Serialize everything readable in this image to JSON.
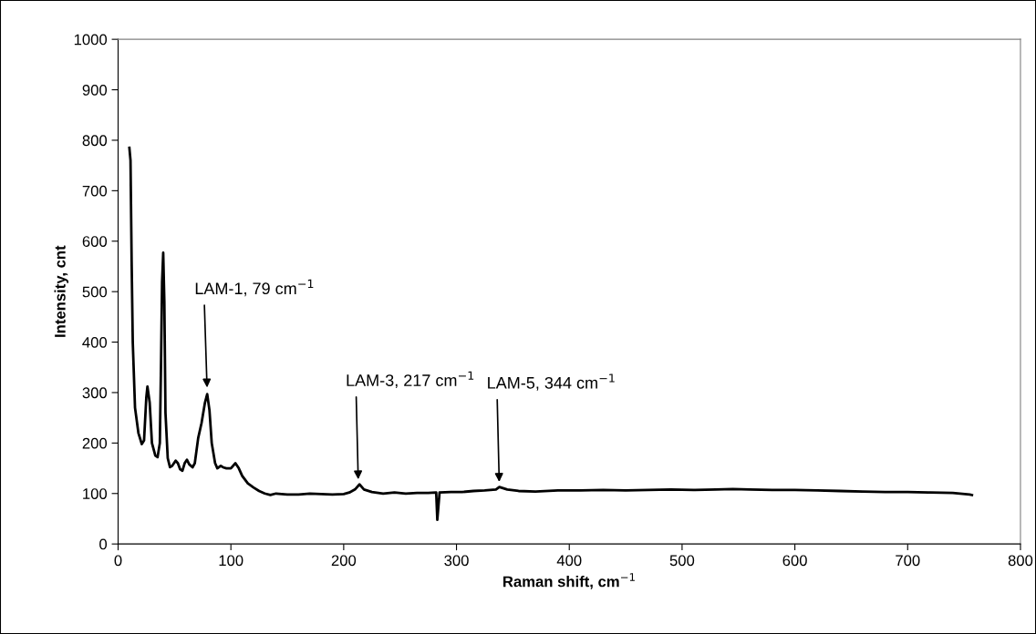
{
  "chart_data": {
    "type": "line",
    "xlabel": "Raman shift, cm$^{−1}$",
    "ylabel": "Intensity, cnt",
    "xlim": [
      0,
      800
    ],
    "xticks": [
      0,
      100,
      200,
      300,
      400,
      500,
      600,
      700,
      800
    ],
    "ylim": [
      0,
      1000
    ],
    "yticks": [
      0,
      100,
      200,
      300,
      400,
      500,
      600,
      700,
      800,
      900,
      1000
    ],
    "grid": false,
    "legend": false,
    "marker": "none",
    "line_style": "solid",
    "series": [
      {
        "color": "#000000",
        "x": [
          10,
          11,
          12,
          13,
          15,
          18,
          21,
          23,
          25,
          26,
          28,
          30,
          33,
          35,
          37,
          38,
          39,
          40,
          41,
          42,
          44,
          46,
          48,
          51,
          53,
          55,
          57,
          59,
          61,
          63,
          66,
          68,
          71,
          74,
          77,
          79,
          81,
          83,
          86,
          88,
          91,
          93,
          96,
          100,
          104,
          107,
          110,
          115,
          120,
          125,
          130,
          135,
          140,
          150,
          160,
          170,
          180,
          190,
          200,
          205,
          210,
          214,
          218,
          225,
          235,
          245,
          255,
          265,
          275,
          282,
          283,
          285,
          295,
          305,
          315,
          325,
          335,
          338,
          345,
          355,
          370,
          390,
          410,
          430,
          450,
          470,
          490,
          510,
          530,
          545,
          560,
          580,
          600,
          620,
          640,
          660,
          680,
          700,
          720,
          740,
          755,
          757
        ],
        "values": [
          785,
          760,
          560,
          400,
          270,
          220,
          198,
          205,
          290,
          312,
          280,
          200,
          175,
          172,
          200,
          350,
          520,
          577,
          480,
          260,
          170,
          152,
          155,
          165,
          160,
          148,
          145,
          160,
          167,
          158,
          152,
          160,
          210,
          240,
          280,
          297,
          265,
          200,
          160,
          150,
          155,
          152,
          150,
          150,
          160,
          150,
          135,
          120,
          112,
          105,
          100,
          97,
          100,
          98,
          98,
          100,
          99,
          98,
          99,
          102,
          108,
          118,
          108,
          103,
          100,
          102,
          100,
          101,
          101,
          102,
          48,
          102,
          103,
          103,
          105,
          106,
          108,
          113,
          108,
          105,
          104,
          106,
          106,
          107,
          106,
          107,
          108,
          107,
          108,
          109,
          108,
          107,
          107,
          106,
          105,
          104,
          103,
          103,
          102,
          101,
          98,
          97
        ]
      }
    ],
    "annotations": [
      {
        "text": "LAM-1, 79 cm$^{−1}$",
        "x": 79,
        "y": 300
      },
      {
        "text": "LAM-3, 217 cm$^{−1}$",
        "x": 213,
        "y": 118
      },
      {
        "text": "LAM-5, 344 cm$^{−1}$",
        "x": 338,
        "y": 113
      }
    ]
  }
}
